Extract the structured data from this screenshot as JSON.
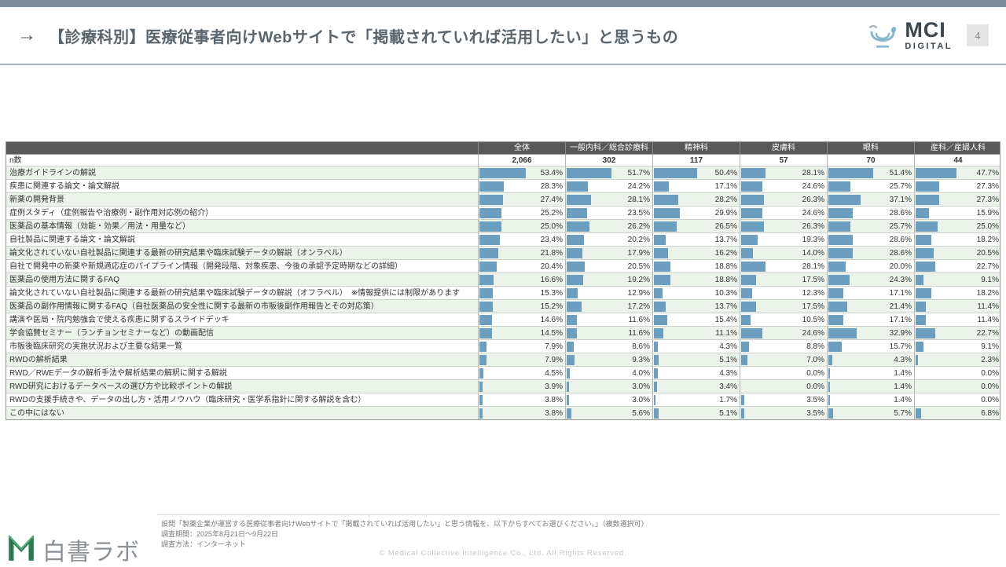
{
  "page": {
    "number": "4"
  },
  "header": {
    "arrow": "→",
    "title": "【診療科別】医療従事者向けWebサイトで「掲載されていれば活用したい」と思うもの"
  },
  "logo": {
    "mci_name": "MCI",
    "mci_sub": "DIGITAL"
  },
  "footer": {
    "logo_text": "白書ラボ",
    "note1": "設問「製薬企業が運営する医療従事者向けWebサイトで「掲載されていれば活用したい」と思う情報を、以下からすべてお選びください。」（複数選択可）",
    "note2": "調査期間：2025年8月21日〜9月22日",
    "note3": "調査方法：インターネット",
    "copyright": "©  Medical Collective Intelligence Co., Ltd.  All Rights Reserved."
  },
  "chart_data": {
    "type": "table",
    "unit": "%",
    "n_label": "n数",
    "columns": [
      "全体",
      "一般内科／総合診療科",
      "精神科",
      "皮膚科",
      "眼科",
      "産科／産婦人科"
    ],
    "n_values": [
      "2,066",
      "302",
      "117",
      "57",
      "70",
      "44"
    ],
    "bar_color": "#6c9fbf",
    "rows": [
      {
        "label": "治療ガイドラインの解説",
        "values": [
          53.4,
          51.7,
          50.4,
          28.1,
          51.4,
          47.7
        ]
      },
      {
        "label": "疾患に関連する論文・論文解説",
        "values": [
          28.3,
          24.2,
          17.1,
          24.6,
          25.7,
          27.3
        ]
      },
      {
        "label": "新薬の開発背景",
        "values": [
          27.4,
          28.1,
          28.2,
          26.3,
          37.1,
          27.3
        ]
      },
      {
        "label": "症例スタディ（症例報告や治療例・副作用対応例の紹介）",
        "values": [
          25.2,
          23.5,
          29.9,
          24.6,
          28.6,
          15.9
        ]
      },
      {
        "label": "医薬品の基本情報（効能・効果／用法・用量など）",
        "values": [
          25.0,
          26.2,
          26.5,
          26.3,
          25.7,
          25.0
        ]
      },
      {
        "label": "自社製品に関連する論文・論文解説",
        "values": [
          23.4,
          20.2,
          13.7,
          19.3,
          28.6,
          18.2
        ]
      },
      {
        "label": "論文化されていない自社製品に関連する最新の研究結果や臨床試験データの解説（オンラベル）",
        "values": [
          21.8,
          17.9,
          16.2,
          14.0,
          28.6,
          20.5
        ]
      },
      {
        "label": "自社で開発中の新薬や新規適応症のパイプライン情報（開発段階、対象疾患、今後の承認予定時期などの詳細）",
        "values": [
          20.4,
          20.5,
          18.8,
          28.1,
          20.0,
          22.7
        ]
      },
      {
        "label": "医薬品の使用方法に関するFAQ",
        "values": [
          16.6,
          19.2,
          18.8,
          17.5,
          24.3,
          9.1
        ]
      },
      {
        "label": "論文化されていない自社製品に関連する最新の研究結果や臨床試験データの解説（オフラベル）　※情報提供には制限があります",
        "values": [
          15.3,
          12.9,
          10.3,
          12.3,
          17.1,
          18.2
        ]
      },
      {
        "label": "医薬品の副作用情報に関するFAQ（自社医薬品の安全性に関する最新の市販後副作用報告とその対応策）",
        "values": [
          15.2,
          17.2,
          13.7,
          17.5,
          21.4,
          11.4
        ]
      },
      {
        "label": "講演や医局・院内勉強会で使える疾患に関するスライドデッキ",
        "values": [
          14.6,
          11.6,
          15.4,
          10.5,
          17.1,
          11.4
        ]
      },
      {
        "label": "学会協賛セミナー（ランチョンセミナーなど）の動画配信",
        "values": [
          14.5,
          11.6,
          11.1,
          24.6,
          32.9,
          22.7
        ]
      },
      {
        "label": "市販後臨床研究の実施状況および主要な結果一覧",
        "values": [
          7.9,
          8.6,
          4.3,
          8.8,
          15.7,
          9.1
        ]
      },
      {
        "label": "RWDの解析結果",
        "values": [
          7.9,
          9.3,
          5.1,
          7.0,
          4.3,
          2.3
        ]
      },
      {
        "label": "RWD／RWEデータの解析手法や解析結果の解釈に関する解説",
        "values": [
          4.5,
          4.0,
          4.3,
          0.0,
          1.4,
          0.0
        ]
      },
      {
        "label": "RWD研究におけるデータベースの選び方や比較ポイントの解説",
        "values": [
          3.9,
          3.0,
          3.4,
          0.0,
          1.4,
          0.0
        ]
      },
      {
        "label": "RWDの支援手続きや、データの出し方・活用ノウハウ（臨床研究・医学系指針に関する解説を含む）",
        "values": [
          3.8,
          3.0,
          1.7,
          3.5,
          1.4,
          0.0
        ]
      },
      {
        "label": "この中にはない",
        "values": [
          3.8,
          5.6,
          5.1,
          3.5,
          5.7,
          6.8
        ]
      }
    ]
  }
}
